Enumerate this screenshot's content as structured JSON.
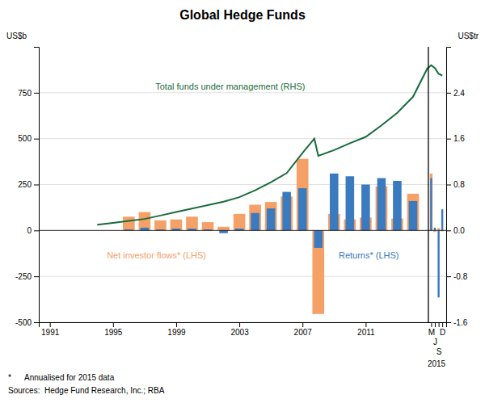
{
  "chart_data": {
    "type": "bar",
    "title": "Global Hedge Funds",
    "ylabel": "US$b",
    "y2label": "US$tr",
    "annotations": [
      "2015"
    ],
    "footnotes": [
      "*      Annualised for 2015 data",
      "Sources:  Hedge Fund Research, Inc.; RBA"
    ],
    "series": [
      {
        "name": "Net investor flows* (LHS)",
        "type": "bar",
        "color": "#f5a067",
        "x": [
          1996,
          1997,
          1998,
          1999,
          2000,
          2001,
          2002,
          2003,
          2004,
          2005,
          2006,
          2007,
          2008,
          2009,
          2010,
          2011,
          2012,
          2013,
          2014,
          2015.15,
          2015.38,
          2015.62,
          2015.85
        ],
        "values": [
          75,
          100,
          55,
          60,
          75,
          45,
          20,
          90,
          140,
          155,
          185,
          390,
          -455,
          90,
          60,
          70,
          240,
          65,
          200,
          310,
          -8,
          12,
          -5
        ]
      },
      {
        "name": "Returns* (LHS)",
        "type": "bar",
        "color": "#3a7abf",
        "x": [
          1996,
          1997,
          1998,
          1999,
          2000,
          2001,
          2002,
          2003,
          2004,
          2005,
          2006,
          2007,
          2008,
          2009,
          2010,
          2011,
          2012,
          2013,
          2014,
          2015.15,
          2015.38,
          2015.62,
          2015.85
        ],
        "values": [
          5,
          15,
          5,
          10,
          10,
          5,
          -15,
          10,
          95,
          120,
          210,
          230,
          -95,
          310,
          295,
          250,
          285,
          270,
          160,
          285,
          15,
          -365,
          115
        ]
      },
      {
        "name": "Total funds under management (RHS)",
        "type": "line",
        "axis": "y2",
        "color": "#1a6b3c",
        "x": [
          1994,
          1995,
          1996,
          1997,
          1998,
          1999,
          2000,
          2001,
          2002,
          2003,
          2004,
          2005,
          2006,
          2007,
          2007.75,
          2008,
          2009,
          2010,
          2011,
          2012,
          2013,
          2014,
          2014.9,
          2015.15,
          2015.38,
          2015.62,
          2015.85
        ],
        "values": [
          0.1,
          0.13,
          0.165,
          0.2,
          0.26,
          0.32,
          0.38,
          0.44,
          0.5,
          0.58,
          0.7,
          0.84,
          1.0,
          1.35,
          1.6,
          1.3,
          1.4,
          1.52,
          1.63,
          1.83,
          2.05,
          2.33,
          2.82,
          2.88,
          2.83,
          2.73,
          2.7
        ]
      }
    ],
    "vline_x": 2014.97,
    "xlim": [
      1990.3,
      2016.1
    ],
    "xticks": [
      1991,
      1995,
      1999,
      2003,
      2007,
      2011,
      {
        "value": 2015.15,
        "label": "M"
      },
      {
        "value": 2015.38,
        "label": "J"
      },
      {
        "value": 2015.62,
        "label": "S"
      },
      {
        "value": 2015.85,
        "label": "D"
      }
    ],
    "ylim": [
      -500,
      1000
    ],
    "yticks": [
      -500,
      -250,
      0,
      250,
      500,
      750
    ],
    "y2lim": [
      -1.6,
      3.2
    ],
    "y2ticks": [
      -1.6,
      -0.8,
      {
        "value": 0,
        "label": "0.0"
      },
      0.8,
      1.6,
      2.4
    ],
    "grid": true
  }
}
